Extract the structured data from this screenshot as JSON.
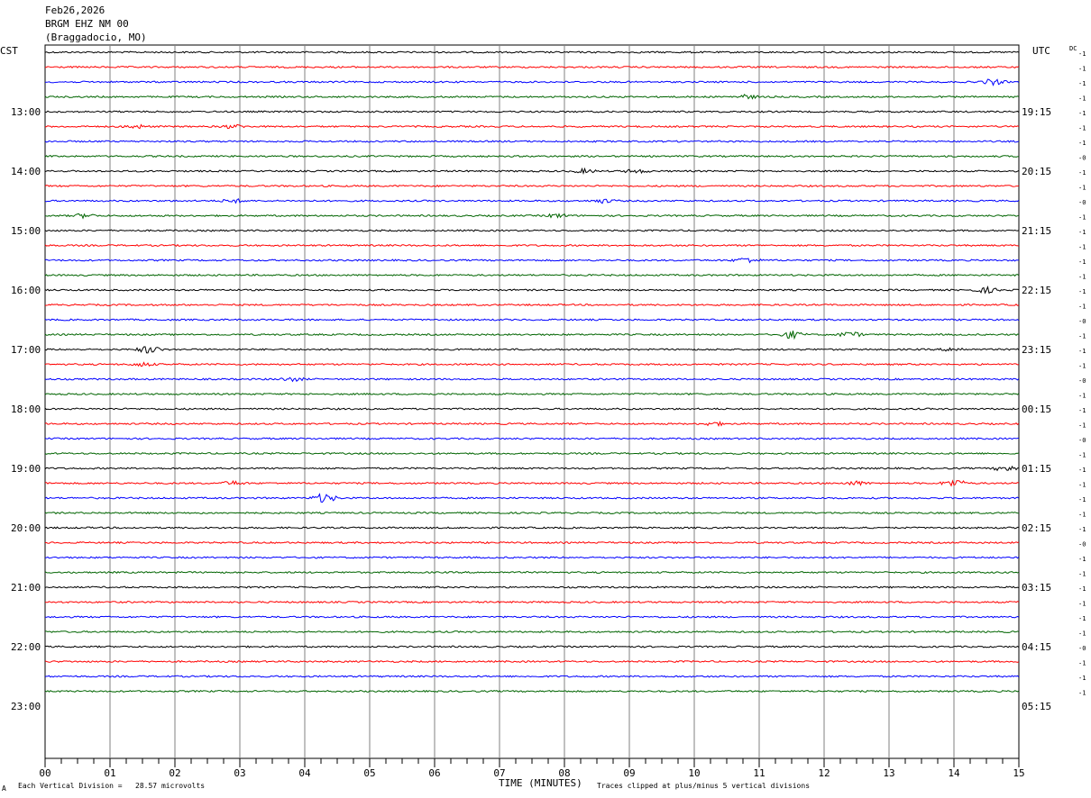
{
  "header": {
    "date": "Feb26,2026",
    "station": "BRGM EHZ NM 00",
    "location": "(Braggadocio, MO)"
  },
  "left_timezone": "CST",
  "right_timezone": "UTC",
  "dc_label": "DC",
  "footer": {
    "xlabel": "TIME (MINUTES)",
    "scale_note": "Each Vertical Division =   28.57 microvolts",
    "clip_note": "Traces clipped at plus/minus 5 vertical divisions",
    "corner_mark": "A"
  },
  "colors": {
    "cycle": [
      "#000000",
      "#ff0000",
      "#0000ff",
      "#006400"
    ],
    "grid": "#808080",
    "text": "#000000"
  },
  "chart_data": {
    "type": "line",
    "subtype": "helicorder",
    "title": "BRGM EHZ NM 00",
    "xlabel": "TIME (MINUTES)",
    "xlim": [
      0,
      15
    ],
    "x_ticks": [
      "00",
      "01",
      "02",
      "03",
      "04",
      "05",
      "06",
      "07",
      "08",
      "09",
      "10",
      "11",
      "12",
      "13",
      "14",
      "15"
    ],
    "row_interval_minutes": 15,
    "total_rows": 44,
    "left_hour_labels": [
      "13:00",
      "14:00",
      "15:00",
      "16:00",
      "17:00",
      "18:00",
      "19:00",
      "20:00",
      "21:00",
      "22:00",
      "23:00"
    ],
    "right_hour_labels": [
      "19:15",
      "20:15",
      "21:15",
      "22:15",
      "23:15",
      "00:15",
      "01:15",
      "02:15",
      "03:15",
      "04:15",
      "05:15"
    ],
    "dc_offsets": [
      "-1",
      "-1",
      "-1",
      "-1",
      "-1",
      "-1",
      "-1",
      "-0",
      "-1",
      "-1",
      "-0",
      "-1",
      "-1",
      "-1",
      "-1",
      "-1",
      "-1",
      "-1",
      "-0",
      "-1",
      "-1",
      "-1",
      "-0",
      "-1",
      "-1",
      "-1",
      "-0",
      "-1",
      "-1",
      "-1",
      "-1",
      "-1",
      "-1",
      "-0",
      "-1",
      "-1",
      "-1",
      "-1",
      "-1",
      "-1",
      "-0",
      "-1",
      "-1",
      "-1"
    ],
    "events": [
      {
        "row": 2,
        "minute": 14.6,
        "amp": 3
      },
      {
        "row": 3,
        "minute": 10.8,
        "amp": 2
      },
      {
        "row": 5,
        "minute": 1.4,
        "amp": 2
      },
      {
        "row": 5,
        "minute": 2.9,
        "amp": 2
      },
      {
        "row": 8,
        "minute": 9.1,
        "amp": 2
      },
      {
        "row": 8,
        "minute": 8.3,
        "amp": 2
      },
      {
        "row": 10,
        "minute": 8.6,
        "amp": 2
      },
      {
        "row": 10,
        "minute": 2.9,
        "amp": 2
      },
      {
        "row": 11,
        "minute": 0.6,
        "amp": 2
      },
      {
        "row": 11,
        "minute": 7.9,
        "amp": 2
      },
      {
        "row": 14,
        "minute": 10.8,
        "amp": 3
      },
      {
        "row": 16,
        "minute": 14.5,
        "amp": 3
      },
      {
        "row": 19,
        "minute": 11.5,
        "amp": 4
      },
      {
        "row": 19,
        "minute": 12.4,
        "amp": 3
      },
      {
        "row": 20,
        "minute": 1.6,
        "amp": 4
      },
      {
        "row": 20,
        "minute": 14.0,
        "amp": 2
      },
      {
        "row": 21,
        "minute": 1.5,
        "amp": 2
      },
      {
        "row": 22,
        "minute": 3.8,
        "amp": 2
      },
      {
        "row": 25,
        "minute": 10.3,
        "amp": 2
      },
      {
        "row": 28,
        "minute": 14.8,
        "amp": 3
      },
      {
        "row": 29,
        "minute": 14.0,
        "amp": 4
      },
      {
        "row": 29,
        "minute": 2.9,
        "amp": 2
      },
      {
        "row": 29,
        "minute": 12.5,
        "amp": 2
      },
      {
        "row": 30,
        "minute": 4.3,
        "amp": 5
      }
    ]
  }
}
